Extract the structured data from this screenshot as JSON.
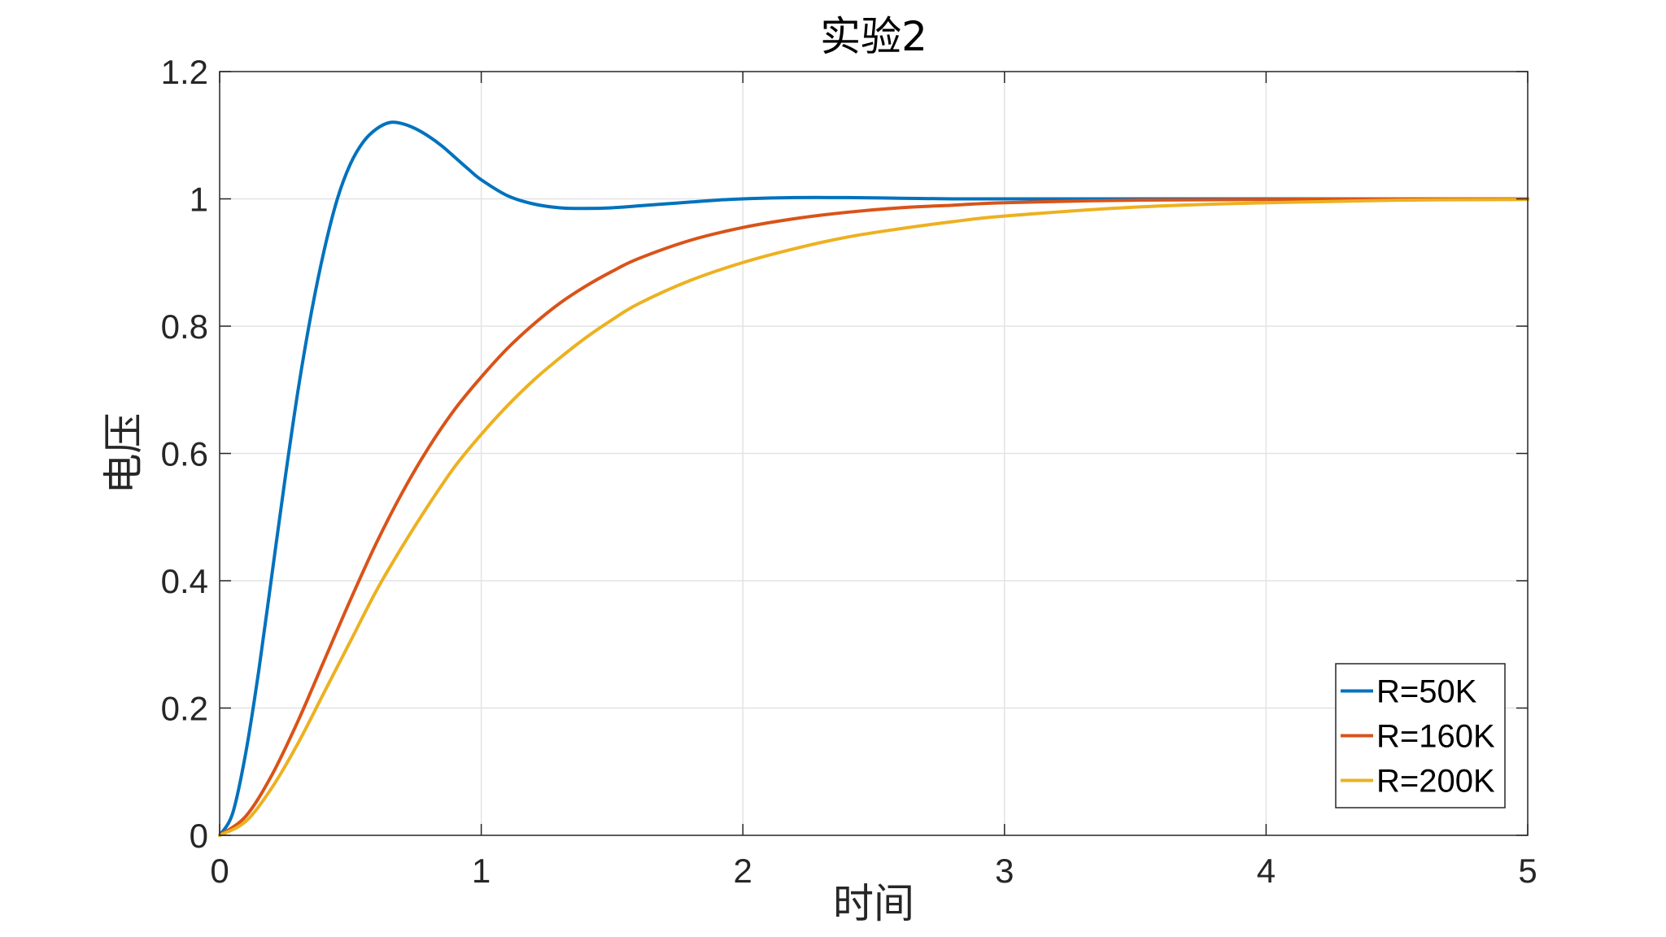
{
  "chart_data": {
    "type": "line",
    "title": "实验2",
    "xlabel": "时间",
    "ylabel": "电压",
    "xlim": [
      0,
      5
    ],
    "ylim": [
      0,
      1.2
    ],
    "xticks": [
      0,
      1,
      2,
      3,
      4,
      5
    ],
    "xtick_labels": [
      "0",
      "1",
      "2",
      "3",
      "4",
      "5"
    ],
    "yticks": [
      0,
      0.2,
      0.4,
      0.6,
      0.8,
      1.0,
      1.2
    ],
    "ytick_labels": [
      "0",
      "0.2",
      "0.4",
      "0.6",
      "0.8",
      "1",
      "1.2"
    ],
    "grid": true,
    "legend_position": "bottom-right",
    "series": [
      {
        "name": "R=50K",
        "color": "#0072BD",
        "x": [
          0,
          0.05,
          0.1,
          0.15,
          0.2,
          0.25,
          0.3,
          0.35,
          0.4,
          0.45,
          0.5,
          0.55,
          0.6,
          0.65,
          0.7,
          0.75,
          0.8,
          0.85,
          0.9,
          0.95,
          1.0,
          1.1,
          1.2,
          1.3,
          1.4,
          1.5,
          1.6,
          1.7,
          1.8,
          1.9,
          2.0,
          2.2,
          2.4,
          2.6,
          2.8,
          3.0,
          3.5,
          4.0,
          4.5,
          5.0
        ],
        "y": [
          0,
          0.035,
          0.13,
          0.26,
          0.41,
          0.56,
          0.7,
          0.82,
          0.92,
          1.0,
          1.055,
          1.09,
          1.11,
          1.12,
          1.118,
          1.11,
          1.098,
          1.083,
          1.065,
          1.047,
          1.03,
          1.005,
          0.992,
          0.986,
          0.985,
          0.986,
          0.989,
          0.992,
          0.995,
          0.998,
          1.0,
          1.002,
          1.002,
          1.001,
          1.0,
          1.0,
          1.0,
          1.0,
          1.0,
          1.0
        ]
      },
      {
        "name": "R=160K",
        "color": "#D95319",
        "x": [
          0,
          0.1,
          0.2,
          0.3,
          0.4,
          0.5,
          0.6,
          0.7,
          0.8,
          0.9,
          1.0,
          1.1,
          1.2,
          1.3,
          1.4,
          1.5,
          1.6,
          1.8,
          2.0,
          2.2,
          2.4,
          2.6,
          2.8,
          3.0,
          3.5,
          4.0,
          4.5,
          5.0
        ],
        "y": [
          0,
          0.03,
          0.095,
          0.18,
          0.275,
          0.37,
          0.46,
          0.54,
          0.61,
          0.67,
          0.72,
          0.765,
          0.803,
          0.836,
          0.863,
          0.886,
          0.906,
          0.935,
          0.955,
          0.969,
          0.979,
          0.986,
          0.99,
          0.994,
          0.998,
          0.999,
          1.0,
          1.0
        ]
      },
      {
        "name": "R=200K",
        "color": "#EDB120",
        "x": [
          0,
          0.1,
          0.2,
          0.3,
          0.4,
          0.5,
          0.6,
          0.7,
          0.8,
          0.9,
          1.0,
          1.1,
          1.2,
          1.3,
          1.4,
          1.5,
          1.6,
          1.8,
          2.0,
          2.2,
          2.4,
          2.6,
          2.8,
          3.0,
          3.5,
          4.0,
          4.5,
          5.0
        ],
        "y": [
          0,
          0.022,
          0.075,
          0.145,
          0.225,
          0.305,
          0.385,
          0.455,
          0.52,
          0.58,
          0.63,
          0.675,
          0.715,
          0.75,
          0.782,
          0.81,
          0.835,
          0.872,
          0.9,
          0.922,
          0.94,
          0.953,
          0.964,
          0.973,
          0.987,
          0.994,
          0.998,
          0.999
        ]
      }
    ]
  }
}
